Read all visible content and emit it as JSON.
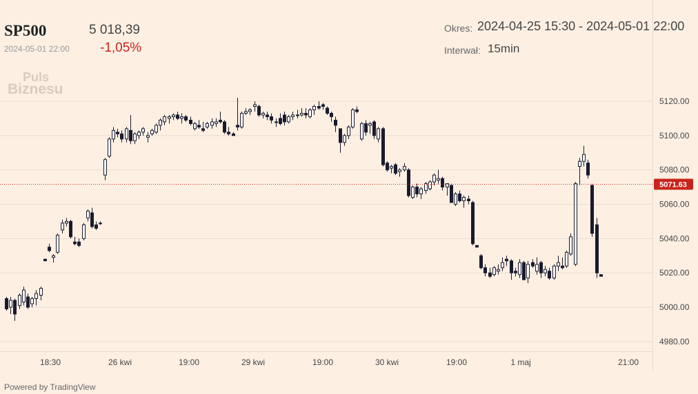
{
  "header": {
    "symbol": "SP500",
    "date": "2024-05-01 22:00",
    "price": "5 018,39",
    "change": "-1,05%",
    "period_label": "Okres:",
    "period_value": "2024-04-25 15:30 - 2024-05-01 22:00",
    "interval_label": "Interwał:",
    "interval_value": "15min"
  },
  "logo": {
    "line1": "Puls",
    "line2": "Biznesu"
  },
  "footer": {
    "powered_by": "Powered by TradingView"
  },
  "colors": {
    "background": "#fdf0e3",
    "candle": "#1a1a2e",
    "last_price": "#c8241c",
    "grid": "#e6dbd0"
  },
  "chart_data": {
    "type": "candlestick",
    "title": "",
    "ylim": [
      4975,
      5128
    ],
    "y_ticks": [
      "5120.00",
      "5100.00",
      "5080.00",
      "5060.00",
      "5040.00",
      "5020.00",
      "5000.00",
      "4980.00"
    ],
    "x_ticks": [
      "18:30",
      "26 kwi",
      "19:00",
      "29 kwi",
      "19:00",
      "30 kwi",
      "19:00",
      "1 maj",
      "21:00"
    ],
    "last_price": "5071.63",
    "grid": "horizontal",
    "candles": [
      [
        5005,
        5006,
        4998,
        4999
      ],
      [
        5000,
        5006,
        4996,
        5004
      ],
      [
        5004,
        5005,
        4992,
        4996
      ],
      [
        5001,
        5008,
        4999,
        5007
      ],
      [
        5003,
        5012,
        5001,
        5010
      ],
      [
        5006,
        5008,
        4999,
        5000
      ],
      [
        5002,
        5006,
        5000,
        5005
      ],
      [
        5005,
        5010,
        5001,
        5008
      ],
      [
        5007,
        5012,
        5004,
        5011
      ],
      [
        5028,
        5028,
        5027,
        5027
      ],
      [
        5035,
        5037,
        5032,
        5033
      ],
      [
        5029,
        5031,
        5026,
        5030
      ],
      [
        5032,
        5043,
        5031,
        5042
      ],
      [
        5045,
        5051,
        5043,
        5049
      ],
      [
        5049,
        5052,
        5047,
        5050
      ],
      [
        5050,
        5051,
        5040,
        5041
      ],
      [
        5038,
        5041,
        5036,
        5037
      ],
      [
        5038,
        5040,
        5035,
        5036
      ],
      [
        5040,
        5049,
        5039,
        5048
      ],
      [
        5052,
        5057,
        5050,
        5056
      ],
      [
        5055,
        5058,
        5046,
        5047
      ],
      [
        5048,
        5050,
        5045,
        5046
      ],
      [
        5049,
        5050,
        5048,
        5049
      ],
      [
        5077,
        5087,
        5074,
        5086
      ],
      [
        5088,
        5099,
        5087,
        5098
      ],
      [
        5098,
        5105,
        5096,
        5103
      ],
      [
        5102,
        5104,
        5099,
        5101
      ],
      [
        5101,
        5103,
        5096,
        5098
      ],
      [
        5098,
        5105,
        5096,
        5104
      ],
      [
        5103,
        5112,
        5095,
        5097
      ],
      [
        5097,
        5102,
        5095,
        5101
      ],
      [
        5100,
        5103,
        5098,
        5102
      ],
      [
        5102,
        5105,
        5100,
        5104
      ],
      [
        5099,
        5102,
        5096,
        5100
      ],
      [
        5101,
        5104,
        5100,
        5103
      ],
      [
        5102,
        5107,
        5101,
        5106
      ],
      [
        5106,
        5110,
        5103,
        5109
      ],
      [
        5108,
        5112,
        5106,
        5111
      ],
      [
        5110,
        5112,
        5107,
        5111
      ],
      [
        5111,
        5113,
        5109,
        5112
      ],
      [
        5112,
        5114,
        5109,
        5110
      ],
      [
        5110,
        5113,
        5107,
        5111
      ],
      [
        5111,
        5112,
        5108,
        5109
      ],
      [
        5109,
        5111,
        5106,
        5107
      ],
      [
        5104,
        5108,
        5103,
        5107
      ],
      [
        5106,
        5109,
        5104,
        5105
      ],
      [
        5104,
        5108,
        5102,
        5103
      ],
      [
        5105,
        5108,
        5104,
        5107
      ],
      [
        5106,
        5110,
        5104,
        5108
      ],
      [
        5107,
        5110,
        5105,
        5108
      ],
      [
        5109,
        5114,
        5107,
        5108
      ],
      [
        5108,
        5109,
        5101,
        5102
      ],
      [
        5102,
        5105,
        5100,
        5101
      ],
      [
        5101,
        5102,
        5100,
        5100
      ],
      [
        5106,
        5122,
        5103,
        5105
      ],
      [
        5105,
        5114,
        5104,
        5113
      ],
      [
        5113,
        5116,
        5112,
        5114
      ],
      [
        5114,
        5116,
        5112,
        5115
      ],
      [
        5117,
        5120,
        5114,
        5118
      ],
      [
        5117,
        5118,
        5111,
        5112
      ],
      [
        5112,
        5114,
        5110,
        5113
      ],
      [
        5112,
        5114,
        5109,
        5111
      ],
      [
        5111,
        5113,
        5107,
        5109
      ],
      [
        5108,
        5110,
        5105,
        5108
      ],
      [
        5110,
        5113,
        5106,
        5107
      ],
      [
        5112,
        5114,
        5106,
        5108
      ],
      [
        5108,
        5112,
        5107,
        5111
      ],
      [
        5111,
        5114,
        5109,
        5112
      ],
      [
        5112,
        5115,
        5110,
        5112
      ],
      [
        5112,
        5116,
        5111,
        5113
      ],
      [
        5113,
        5116,
        5110,
        5112
      ],
      [
        5111,
        5116,
        5110,
        5115
      ],
      [
        5115,
        5118,
        5112,
        5117
      ],
      [
        5117,
        5120,
        5115,
        5116
      ],
      [
        5118,
        5119,
        5115,
        5117
      ],
      [
        5116,
        5117,
        5112,
        5113
      ],
      [
        5113,
        5114,
        5108,
        5111
      ],
      [
        5109,
        5111,
        5102,
        5106
      ],
      [
        5104,
        5104,
        5090,
        5096
      ],
      [
        5096,
        5101,
        5094,
        5100
      ],
      [
        5100,
        5106,
        5098,
        5105
      ],
      [
        5105,
        5116,
        5104,
        5115
      ],
      [
        5115,
        5117,
        5113,
        5114
      ],
      [
        5098,
        5108,
        5097,
        5107
      ],
      [
        5107,
        5109,
        5100,
        5102
      ],
      [
        5106,
        5108,
        5101,
        5107
      ],
      [
        5108,
        5109,
        5098,
        5100
      ],
      [
        5098,
        5105,
        5096,
        5104
      ],
      [
        5104,
        5105,
        5082,
        5083
      ],
      [
        5084,
        5085,
        5079,
        5080
      ],
      [
        5081,
        5083,
        5078,
        5082
      ],
      [
        5083,
        5084,
        5077,
        5078
      ],
      [
        5079,
        5081,
        5076,
        5080
      ],
      [
        5080,
        5084,
        5079,
        5082
      ],
      [
        5080,
        5081,
        5064,
        5065
      ],
      [
        5064,
        5071,
        5063,
        5070
      ],
      [
        5070,
        5072,
        5064,
        5066
      ],
      [
        5066,
        5070,
        5063,
        5069
      ],
      [
        5068,
        5073,
        5066,
        5072
      ],
      [
        5069,
        5074,
        5068,
        5073
      ],
      [
        5073,
        5078,
        5071,
        5077
      ],
      [
        5074,
        5080,
        5072,
        5075
      ],
      [
        5075,
        5076,
        5068,
        5070
      ],
      [
        5070,
        5072,
        5065,
        5072
      ],
      [
        5071,
        5072,
        5061,
        5061
      ],
      [
        5060,
        5067,
        5059,
        5066
      ],
      [
        5066,
        5068,
        5061,
        5062
      ],
      [
        5062,
        5065,
        5058,
        5064
      ],
      [
        5063,
        5065,
        5060,
        5062
      ],
      [
        5061,
        5062,
        5036,
        5037
      ],
      [
        5036,
        5036,
        5035,
        5035
      ],
      [
        5030,
        5031,
        5022,
        5023
      ],
      [
        5023,
        5025,
        5018,
        5020
      ],
      [
        5020,
        5023,
        5017,
        5018
      ],
      [
        5019,
        5024,
        5018,
        5023
      ],
      [
        5021,
        5025,
        5019,
        5022
      ],
      [
        5023,
        5029,
        5021,
        5026
      ],
      [
        5028,
        5030,
        5024,
        5027
      ],
      [
        5027,
        5028,
        5016,
        5020
      ],
      [
        5021,
        5023,
        5018,
        5020
      ],
      [
        5019,
        5028,
        5017,
        5026
      ],
      [
        5026,
        5027,
        5016,
        5016
      ],
      [
        5017,
        5027,
        5014,
        5025
      ],
      [
        5026,
        5028,
        5023,
        5024
      ],
      [
        5021,
        5029,
        5019,
        5025
      ],
      [
        5026,
        5027,
        5017,
        5020
      ],
      [
        5020,
        5024,
        5018,
        5022
      ],
      [
        5021,
        5023,
        5016,
        5017
      ],
      [
        5017,
        5025,
        5016,
        5024
      ],
      [
        5024,
        5030,
        5021,
        5026
      ],
      [
        5024,
        5029,
        5022,
        5023
      ],
      [
        5024,
        5033,
        5023,
        5032
      ],
      [
        5031,
        5043,
        5030,
        5041
      ],
      [
        5025,
        5073,
        5024,
        5072
      ],
      [
        5082,
        5087,
        5071,
        5085
      ],
      [
        5085,
        5094,
        5082,
        5089
      ],
      [
        5084,
        5086,
        5075,
        5077
      ],
      [
        5071,
        5072,
        5041,
        5043
      ],
      [
        5048,
        5052,
        5017,
        5020
      ],
      [
        5019,
        5019,
        5018,
        5018
      ]
    ]
  }
}
